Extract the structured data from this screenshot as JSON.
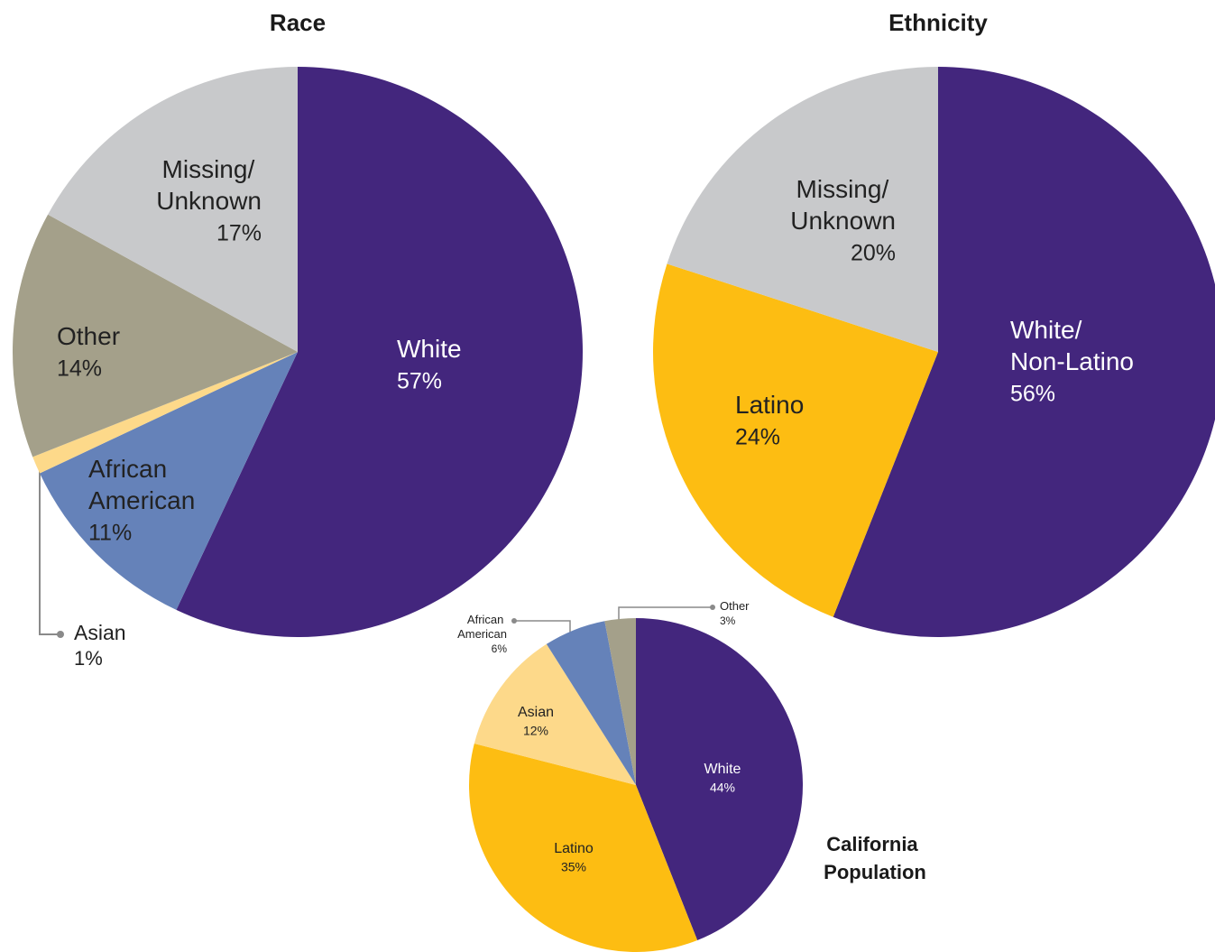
{
  "chart_data": [
    {
      "type": "pie",
      "title": "Race",
      "categories": [
        "White",
        "African American",
        "Asian",
        "Other",
        "Missing/ Unknown"
      ],
      "values": [
        57,
        11,
        1,
        14,
        17
      ],
      "value_labels": [
        "57%",
        "11%",
        "1%",
        "14%",
        "17%"
      ],
      "colors": [
        "#43267d",
        "#6582b9",
        "#fdd98a",
        "#a4a08a",
        "#c8c9cb"
      ]
    },
    {
      "type": "pie",
      "title": "Ethnicity",
      "categories": [
        "White/ Non-Latino",
        "Latino",
        "Missing/ Unknown"
      ],
      "values": [
        56,
        24,
        20
      ],
      "value_labels": [
        "56%",
        "24%",
        "20%"
      ],
      "colors": [
        "#43267d",
        "#fdbd12",
        "#c8c9cb"
      ]
    },
    {
      "type": "pie",
      "title": "California Population",
      "categories": [
        "White",
        "Latino",
        "Asian",
        "African American",
        "Other"
      ],
      "values": [
        44,
        35,
        12,
        6,
        3
      ],
      "value_labels": [
        "44%",
        "35%",
        "12%",
        "6%",
        "3%"
      ],
      "colors": [
        "#43267d",
        "#fdbd12",
        "#fdd98a",
        "#6582b9",
        "#a4a08a"
      ]
    }
  ]
}
